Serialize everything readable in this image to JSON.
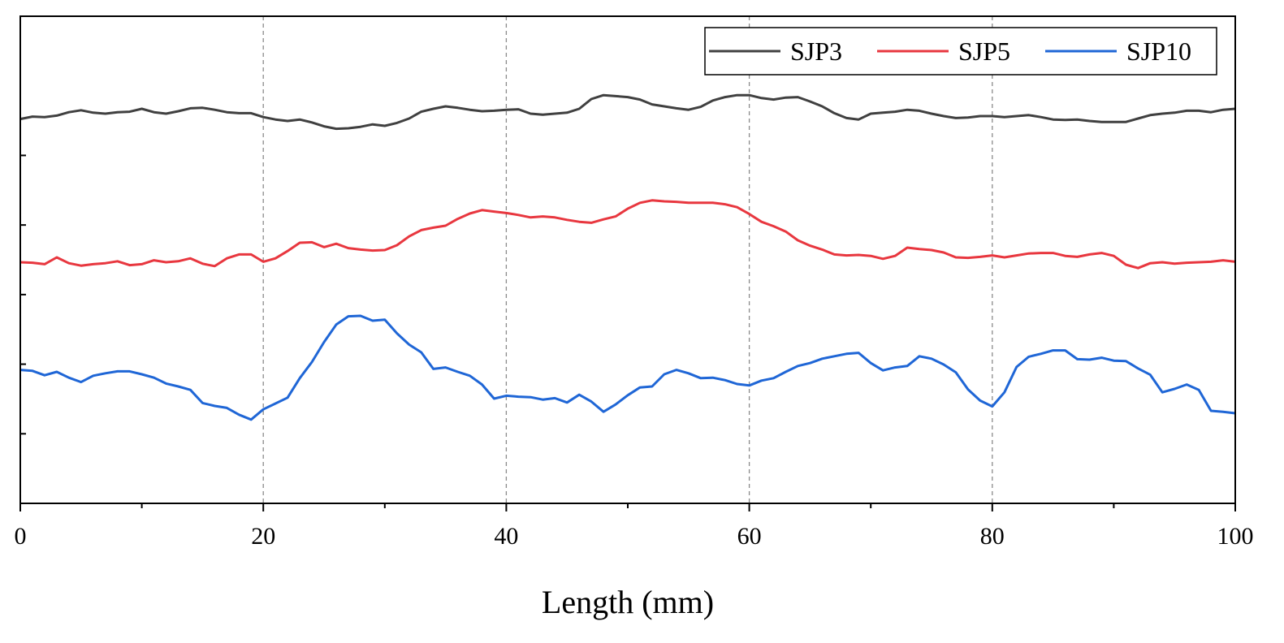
{
  "chart_data": {
    "type": "line",
    "xlabel": "Length (mm)",
    "ylabel": "",
    "xlim": [
      0,
      100
    ],
    "ylim": [
      0,
      1
    ],
    "x_ticks": [
      "0",
      "20",
      "40",
      "60",
      "80",
      "100"
    ],
    "grid_x_dashed": [
      20,
      40,
      60,
      80
    ],
    "legend_position": "top-right",
    "series": [
      {
        "name": "SJP3",
        "color": "#404040",
        "points": [
          [
            0,
            0.789
          ],
          [
            1,
            0.794
          ],
          [
            2,
            0.793
          ],
          [
            3,
            0.796
          ],
          [
            4,
            0.803
          ],
          [
            5,
            0.807
          ],
          [
            6,
            0.802
          ],
          [
            7,
            0.8
          ],
          [
            8,
            0.803
          ],
          [
            9,
            0.804
          ],
          [
            10,
            0.81
          ],
          [
            11,
            0.803
          ],
          [
            12,
            0.8
          ],
          [
            13,
            0.805
          ],
          [
            14,
            0.811
          ],
          [
            15,
            0.812
          ],
          [
            16,
            0.808
          ],
          [
            17,
            0.803
          ],
          [
            18,
            0.801
          ],
          [
            19,
            0.801
          ],
          [
            20,
            0.793
          ],
          [
            21,
            0.788
          ],
          [
            22,
            0.785
          ],
          [
            23,
            0.788
          ],
          [
            24,
            0.782
          ],
          [
            25,
            0.774
          ],
          [
            26,
            0.769
          ],
          [
            27,
            0.77
          ],
          [
            28,
            0.773
          ],
          [
            29,
            0.778
          ],
          [
            30,
            0.775
          ],
          [
            31,
            0.781
          ],
          [
            32,
            0.79
          ],
          [
            33,
            0.804
          ],
          [
            34,
            0.81
          ],
          [
            35,
            0.815
          ],
          [
            36,
            0.812
          ],
          [
            37,
            0.808
          ],
          [
            38,
            0.805
          ],
          [
            39,
            0.806
          ],
          [
            40,
            0.808
          ],
          [
            41,
            0.809
          ],
          [
            42,
            0.8
          ],
          [
            43,
            0.798
          ],
          [
            44,
            0.8
          ],
          [
            45,
            0.802
          ],
          [
            46,
            0.81
          ],
          [
            47,
            0.83
          ],
          [
            48,
            0.838
          ],
          [
            49,
            0.836
          ],
          [
            50,
            0.834
          ],
          [
            51,
            0.829
          ],
          [
            52,
            0.819
          ],
          [
            53,
            0.815
          ],
          [
            54,
            0.811
          ],
          [
            55,
            0.808
          ],
          [
            56,
            0.814
          ],
          [
            57,
            0.827
          ],
          [
            58,
            0.834
          ],
          [
            59,
            0.838
          ],
          [
            60,
            0.838
          ],
          [
            61,
            0.832
          ],
          [
            62,
            0.829
          ],
          [
            63,
            0.833
          ],
          [
            64,
            0.834
          ],
          [
            65,
            0.825
          ],
          [
            66,
            0.815
          ],
          [
            67,
            0.801
          ],
          [
            68,
            0.791
          ],
          [
            69,
            0.788
          ],
          [
            70,
            0.8
          ],
          [
            71,
            0.802
          ],
          [
            72,
            0.804
          ],
          [
            73,
            0.808
          ],
          [
            74,
            0.806
          ],
          [
            75,
            0.8
          ],
          [
            76,
            0.795
          ],
          [
            77,
            0.791
          ],
          [
            78,
            0.792
          ],
          [
            79,
            0.795
          ],
          [
            80,
            0.795
          ],
          [
            81,
            0.793
          ],
          [
            82,
            0.795
          ],
          [
            83,
            0.797
          ],
          [
            84,
            0.793
          ],
          [
            85,
            0.788
          ],
          [
            86,
            0.787
          ],
          [
            87,
            0.788
          ],
          [
            88,
            0.785
          ],
          [
            89,
            0.783
          ],
          [
            90,
            0.783
          ],
          [
            91,
            0.783
          ],
          [
            92,
            0.79
          ],
          [
            93,
            0.797
          ],
          [
            94,
            0.8
          ],
          [
            95,
            0.802
          ],
          [
            96,
            0.806
          ],
          [
            97,
            0.806
          ],
          [
            98,
            0.803
          ],
          [
            99,
            0.808
          ],
          [
            100,
            0.81
          ]
        ]
      },
      {
        "name": "SJP5",
        "color": "#e8373f",
        "points": [
          [
            0,
            0.495
          ],
          [
            1,
            0.494
          ],
          [
            2,
            0.491
          ],
          [
            3,
            0.505
          ],
          [
            4,
            0.493
          ],
          [
            5,
            0.488
          ],
          [
            6,
            0.491
          ],
          [
            7,
            0.493
          ],
          [
            8,
            0.497
          ],
          [
            9,
            0.489
          ],
          [
            10,
            0.491
          ],
          [
            11,
            0.499
          ],
          [
            12,
            0.495
          ],
          [
            13,
            0.497
          ],
          [
            14,
            0.503
          ],
          [
            15,
            0.492
          ],
          [
            16,
            0.487
          ],
          [
            17,
            0.503
          ],
          [
            18,
            0.511
          ],
          [
            19,
            0.511
          ],
          [
            20,
            0.496
          ],
          [
            21,
            0.503
          ],
          [
            22,
            0.518
          ],
          [
            23,
            0.535
          ],
          [
            24,
            0.536
          ],
          [
            25,
            0.526
          ],
          [
            26,
            0.533
          ],
          [
            27,
            0.524
          ],
          [
            28,
            0.521
          ],
          [
            29,
            0.519
          ],
          [
            30,
            0.52
          ],
          [
            31,
            0.53
          ],
          [
            32,
            0.548
          ],
          [
            33,
            0.561
          ],
          [
            34,
            0.566
          ],
          [
            35,
            0.57
          ],
          [
            36,
            0.584
          ],
          [
            37,
            0.595
          ],
          [
            38,
            0.602
          ],
          [
            39,
            0.599
          ],
          [
            40,
            0.596
          ],
          [
            41,
            0.592
          ],
          [
            42,
            0.587
          ],
          [
            43,
            0.589
          ],
          [
            44,
            0.587
          ],
          [
            45,
            0.582
          ],
          [
            46,
            0.578
          ],
          [
            47,
            0.576
          ],
          [
            48,
            0.583
          ],
          [
            49,
            0.589
          ],
          [
            50,
            0.605
          ],
          [
            51,
            0.617
          ],
          [
            52,
            0.622
          ],
          [
            53,
            0.62
          ],
          [
            54,
            0.619
          ],
          [
            55,
            0.617
          ],
          [
            56,
            0.617
          ],
          [
            57,
            0.617
          ],
          [
            58,
            0.614
          ],
          [
            59,
            0.608
          ],
          [
            60,
            0.594
          ],
          [
            61,
            0.578
          ],
          [
            62,
            0.569
          ],
          [
            63,
            0.558
          ],
          [
            64,
            0.54
          ],
          [
            65,
            0.529
          ],
          [
            66,
            0.521
          ],
          [
            67,
            0.511
          ],
          [
            68,
            0.509
          ],
          [
            69,
            0.51
          ],
          [
            70,
            0.508
          ],
          [
            71,
            0.502
          ],
          [
            72,
            0.508
          ],
          [
            73,
            0.525
          ],
          [
            74,
            0.522
          ],
          [
            75,
            0.52
          ],
          [
            76,
            0.515
          ],
          [
            77,
            0.505
          ],
          [
            78,
            0.504
          ],
          [
            79,
            0.506
          ],
          [
            80,
            0.509
          ],
          [
            81,
            0.505
          ],
          [
            82,
            0.509
          ],
          [
            83,
            0.513
          ],
          [
            84,
            0.514
          ],
          [
            85,
            0.514
          ],
          [
            86,
            0.508
          ],
          [
            87,
            0.506
          ],
          [
            88,
            0.511
          ],
          [
            89,
            0.514
          ],
          [
            90,
            0.508
          ],
          [
            91,
            0.49
          ],
          [
            92,
            0.483
          ],
          [
            93,
            0.493
          ],
          [
            94,
            0.495
          ],
          [
            95,
            0.492
          ],
          [
            96,
            0.494
          ],
          [
            97,
            0.495
          ],
          [
            98,
            0.496
          ],
          [
            99,
            0.499
          ],
          [
            100,
            0.496
          ]
        ]
      },
      {
        "name": "SJP10",
        "color": "#1f66d6",
        "points": [
          [
            0,
            0.274
          ],
          [
            1,
            0.272
          ],
          [
            2,
            0.263
          ],
          [
            3,
            0.27
          ],
          [
            4,
            0.258
          ],
          [
            5,
            0.249
          ],
          [
            6,
            0.262
          ],
          [
            7,
            0.267
          ],
          [
            8,
            0.271
          ],
          [
            9,
            0.271
          ],
          [
            10,
            0.265
          ],
          [
            11,
            0.258
          ],
          [
            12,
            0.246
          ],
          [
            13,
            0.24
          ],
          [
            14,
            0.233
          ],
          [
            15,
            0.206
          ],
          [
            16,
            0.2
          ],
          [
            17,
            0.196
          ],
          [
            18,
            0.182
          ],
          [
            19,
            0.172
          ],
          [
            20,
            0.193
          ],
          [
            21,
            0.205
          ],
          [
            22,
            0.217
          ],
          [
            23,
            0.257
          ],
          [
            24,
            0.29
          ],
          [
            25,
            0.331
          ],
          [
            26,
            0.367
          ],
          [
            27,
            0.384
          ],
          [
            28,
            0.385
          ],
          [
            29,
            0.375
          ],
          [
            30,
            0.377
          ],
          [
            31,
            0.349
          ],
          [
            32,
            0.326
          ],
          [
            33,
            0.31
          ],
          [
            34,
            0.276
          ],
          [
            35,
            0.279
          ],
          [
            36,
            0.27
          ],
          [
            37,
            0.262
          ],
          [
            38,
            0.244
          ],
          [
            39,
            0.215
          ],
          [
            40,
            0.221
          ],
          [
            41,
            0.219
          ],
          [
            42,
            0.218
          ],
          [
            43,
            0.213
          ],
          [
            44,
            0.216
          ],
          [
            45,
            0.207
          ],
          [
            46,
            0.223
          ],
          [
            47,
            0.209
          ],
          [
            48,
            0.188
          ],
          [
            49,
            0.203
          ],
          [
            50,
            0.222
          ],
          [
            51,
            0.238
          ],
          [
            52,
            0.24
          ],
          [
            53,
            0.265
          ],
          [
            54,
            0.274
          ],
          [
            55,
            0.267
          ],
          [
            56,
            0.257
          ],
          [
            57,
            0.258
          ],
          [
            58,
            0.253
          ],
          [
            59,
            0.245
          ],
          [
            60,
            0.242
          ],
          [
            61,
            0.252
          ],
          [
            62,
            0.257
          ],
          [
            63,
            0.27
          ],
          [
            64,
            0.282
          ],
          [
            65,
            0.288
          ],
          [
            66,
            0.297
          ],
          [
            67,
            0.302
          ],
          [
            68,
            0.307
          ],
          [
            69,
            0.309
          ],
          [
            70,
            0.288
          ],
          [
            71,
            0.273
          ],
          [
            72,
            0.279
          ],
          [
            73,
            0.282
          ],
          [
            74,
            0.302
          ],
          [
            75,
            0.297
          ],
          [
            76,
            0.285
          ],
          [
            77,
            0.269
          ],
          [
            78,
            0.234
          ],
          [
            79,
            0.211
          ],
          [
            80,
            0.199
          ],
          [
            81,
            0.228
          ],
          [
            82,
            0.28
          ],
          [
            83,
            0.301
          ],
          [
            84,
            0.307
          ],
          [
            85,
            0.314
          ],
          [
            86,
            0.314
          ],
          [
            87,
            0.296
          ],
          [
            88,
            0.295
          ],
          [
            89,
            0.299
          ],
          [
            90,
            0.293
          ],
          [
            91,
            0.292
          ],
          [
            92,
            0.277
          ],
          [
            93,
            0.264
          ],
          [
            94,
            0.228
          ],
          [
            95,
            0.235
          ],
          [
            96,
            0.244
          ],
          [
            97,
            0.233
          ],
          [
            98,
            0.19
          ],
          [
            99,
            0.188
          ],
          [
            100,
            0.185
          ]
        ]
      }
    ]
  }
}
